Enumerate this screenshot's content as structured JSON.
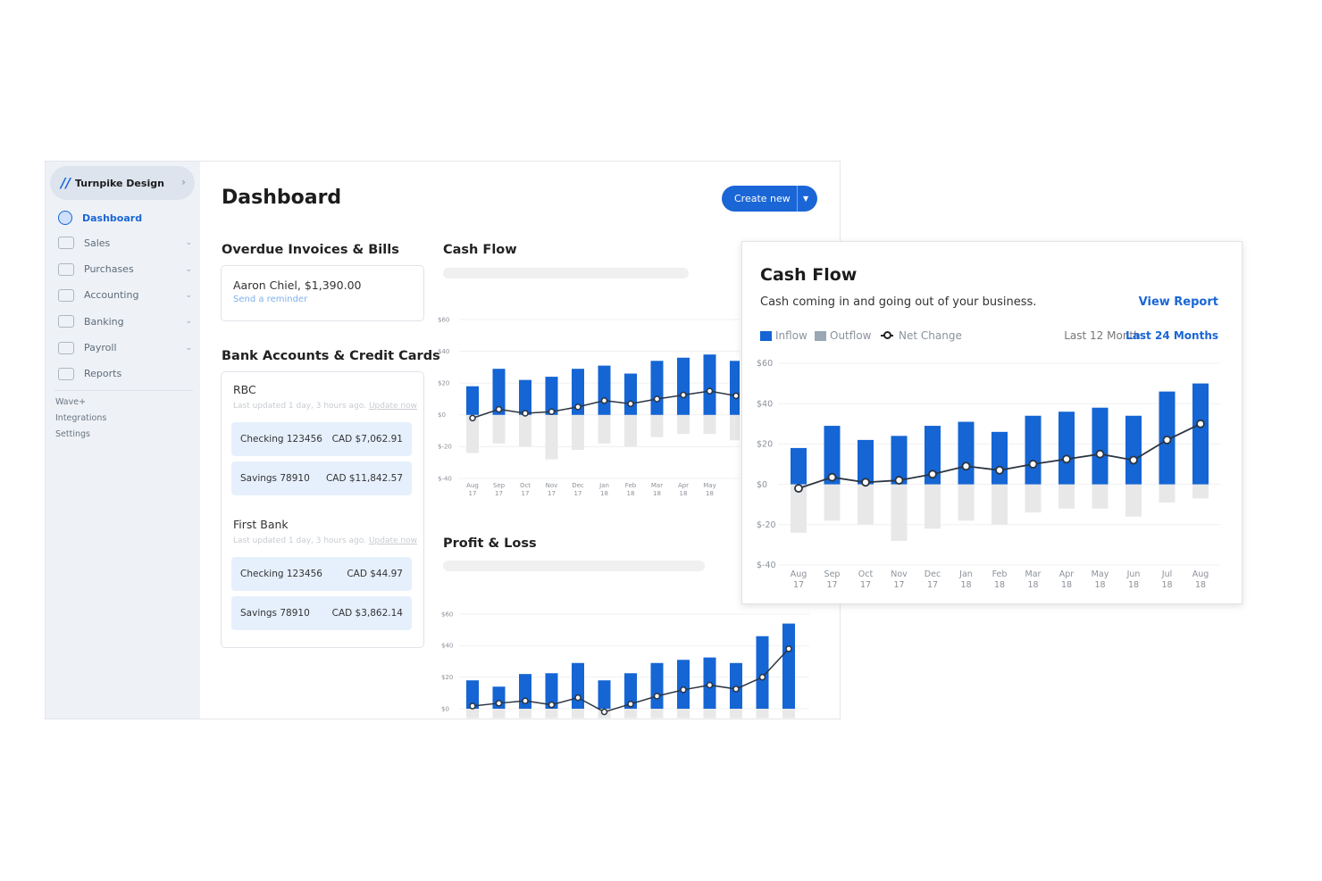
{
  "colors": {
    "accent": "#1a66d6",
    "inflow": "#1565d4",
    "outflow": "#e8e8e8",
    "outflow_legend": "#9aa7b5",
    "net_line": "#2b3440",
    "sidebar_bg": "#eef2f7",
    "account_bg": "#e6f0fd"
  },
  "sidebar": {
    "business_name": "Turnpike Design",
    "logo_icon": "wave-logo-icon",
    "items": [
      {
        "label": "Dashboard",
        "icon": "dashboard-icon",
        "active": true
      },
      {
        "label": "Sales",
        "icon": "sales-icon",
        "expandable": true
      },
      {
        "label": "Purchases",
        "icon": "cart-icon",
        "expandable": true
      },
      {
        "label": "Accounting",
        "icon": "scales-icon",
        "expandable": true
      },
      {
        "label": "Banking",
        "icon": "bank-icon",
        "expandable": true
      },
      {
        "label": "Payroll",
        "icon": "payroll-icon",
        "expandable": true
      },
      {
        "label": "Reports",
        "icon": "reports-icon"
      }
    ],
    "secondary": [
      "Wave+",
      "Integrations",
      "Settings"
    ]
  },
  "header": {
    "title": "Dashboard",
    "create_label": "Create new"
  },
  "overdue": {
    "title": "Overdue Invoices & Bills",
    "item": "Aaron Chiel, $1,390.00",
    "action": "Send a reminder"
  },
  "banks": {
    "title": "Bank Accounts & Credit Cards",
    "list": [
      {
        "name": "RBC",
        "updated": "Last updated 1 day, 3 hours ago.",
        "update_link": "Update now",
        "accounts": [
          {
            "name": "Checking 123456",
            "balance": "CAD $7,062.91"
          },
          {
            "name": "Savings 78910",
            "balance": "CAD $11,842.57"
          }
        ]
      },
      {
        "name": "First Bank",
        "updated": "Last updated 1 day, 3 hours ago.",
        "update_link": "Update now",
        "accounts": [
          {
            "name": "Checking 123456",
            "balance": "CAD $44.97"
          },
          {
            "name": "Savings 78910",
            "balance": "CAD $3,862.14"
          }
        ]
      }
    ]
  },
  "widgets": {
    "cash_flow_title": "Cash Flow",
    "profit_loss_title": "Profit & Loss"
  },
  "popup": {
    "title": "Cash Flow",
    "description": "Cash coming in and going out of your business.",
    "view_report": "View Report",
    "legend": [
      "Inflow",
      "Outflow",
      "Net Change"
    ],
    "range_options": [
      "Last 12 Months",
      "Last 24 Months"
    ],
    "range_selected": "Last 24 Months"
  },
  "chart_data": [
    {
      "id": "cash-flow-detail",
      "type": "bar",
      "title": "Cash Flow",
      "ylim": [
        -40,
        60
      ],
      "yticks": [
        "$60",
        "$40",
        "$20",
        "$0",
        "$-20",
        "$-40"
      ],
      "ytick_values": [
        60,
        40,
        20,
        0,
        -20,
        -40
      ],
      "grid": true,
      "legend": "top-left",
      "categories": [
        [
          "Aug",
          "17"
        ],
        [
          "Sep",
          "17"
        ],
        [
          "Oct",
          "17"
        ],
        [
          "Nov",
          "17"
        ],
        [
          "Dec",
          "17"
        ],
        [
          "Jan",
          "18"
        ],
        [
          "Feb",
          "18"
        ],
        [
          "Mar",
          "18"
        ],
        [
          "Apr",
          "18"
        ],
        [
          "May",
          "18"
        ],
        [
          "Jun",
          "18"
        ],
        [
          "Jul",
          "18"
        ],
        [
          "Aug",
          "18"
        ]
      ],
      "series": [
        {
          "name": "Inflow",
          "type": "bar",
          "values": [
            18,
            29,
            22,
            24,
            29,
            31,
            26,
            34,
            36,
            38,
            34,
            46,
            50
          ]
        },
        {
          "name": "Outflow",
          "type": "bar",
          "values": [
            -24,
            -18,
            -20,
            -28,
            -22,
            -18,
            -20,
            -14,
            -12,
            -12,
            -16,
            -9,
            -7
          ]
        },
        {
          "name": "Net Change",
          "type": "line",
          "values": [
            -2,
            3.5,
            1,
            2,
            5,
            9,
            7,
            10,
            12.5,
            15,
            12,
            22,
            30
          ]
        }
      ]
    },
    {
      "id": "cash-flow-dashboard",
      "type": "bar",
      "ylim": [
        -40,
        60
      ],
      "yticks": [
        "$60",
        "$40",
        "$20",
        "$0",
        "$-20",
        "$-40"
      ],
      "ytick_values": [
        60,
        40,
        20,
        0,
        -20,
        -40
      ],
      "grid": true,
      "categories": [
        [
          "Aug",
          "17"
        ],
        [
          "Sep",
          "17"
        ],
        [
          "Oct",
          "17"
        ],
        [
          "Nov",
          "17"
        ],
        [
          "Dec",
          "17"
        ],
        [
          "Jan",
          "18"
        ],
        [
          "Feb",
          "18"
        ],
        [
          "Mar",
          "18"
        ],
        [
          "Apr",
          "18"
        ],
        [
          "May",
          "18"
        ],
        [
          "Jun",
          "18"
        ],
        [
          "Jul",
          "18"
        ],
        [
          "Aug",
          "18"
        ]
      ],
      "series": [
        {
          "type": "bar",
          "values": [
            18,
            29,
            22,
            24,
            29,
            31,
            26,
            34,
            36,
            38,
            34,
            46,
            50
          ]
        },
        {
          "type": "bar",
          "values": [
            -24,
            -18,
            -20,
            -28,
            -22,
            -18,
            -20,
            -14,
            -12,
            -12,
            -16,
            -9,
            -7
          ]
        },
        {
          "type": "line",
          "values": [
            -2,
            3.5,
            1,
            2,
            5,
            9,
            7,
            10,
            12.5,
            15,
            12,
            22,
            30
          ]
        }
      ]
    },
    {
      "id": "profit-loss-dashboard",
      "type": "bar",
      "ylim": [
        0,
        60
      ],
      "yticks": [
        "$60",
        "$40",
        "$20",
        "$0"
      ],
      "ytick_values": [
        60,
        40,
        20,
        0
      ],
      "grid": true,
      "series": [
        {
          "type": "bar",
          "values": [
            18,
            14,
            22,
            22.5,
            29,
            18,
            22.5,
            29,
            31,
            32.5,
            29,
            46,
            54
          ]
        },
        {
          "type": "bar",
          "values": [
            -6,
            -6,
            -6,
            -6,
            -6,
            -6,
            -6,
            -6,
            -6,
            -6,
            -6,
            -6,
            -6
          ]
        },
        {
          "type": "line",
          "values": [
            1.7,
            3.5,
            5,
            2.5,
            7,
            -2,
            3,
            8,
            12,
            15,
            12.5,
            20,
            38
          ]
        }
      ]
    }
  ]
}
